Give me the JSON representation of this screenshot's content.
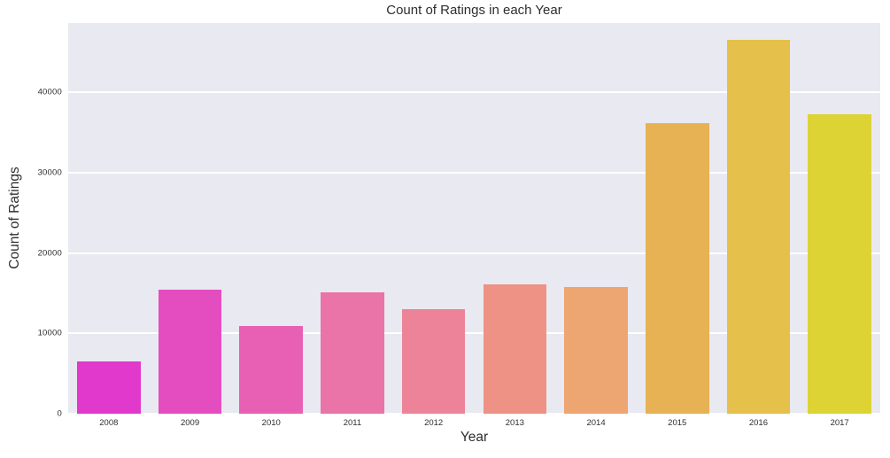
{
  "figure": {
    "background": "#ffffff"
  },
  "chart_data": {
    "type": "bar",
    "title": "Count of Ratings in each Year",
    "xlabel": "Year",
    "ylabel": "Count of Ratings",
    "categories": [
      "2008",
      "2009",
      "2010",
      "2011",
      "2012",
      "2013",
      "2014",
      "2015",
      "2016",
      "2017"
    ],
    "values": [
      6500,
      15400,
      10900,
      15100,
      13000,
      16100,
      15800,
      36100,
      46500,
      37300
    ],
    "bar_colors": [
      "#e039cc",
      "#e44dc0",
      "#e860b4",
      "#ea73a7",
      "#ed8399",
      "#ed9284",
      "#eda571",
      "#e6b254",
      "#e5c04a",
      "#ddd335"
    ],
    "yticks": [
      0,
      10000,
      20000,
      30000,
      40000
    ],
    "ytick_labels": [
      "0",
      "10000",
      "20000",
      "30000",
      "40000"
    ],
    "ylim": [
      0,
      48600
    ],
    "grid": true,
    "legend": false,
    "bar_width_fraction": 0.78,
    "plot_background": "#e9e9f1",
    "grid_color": "#ffffff",
    "text_color": "#2e2e2e"
  }
}
